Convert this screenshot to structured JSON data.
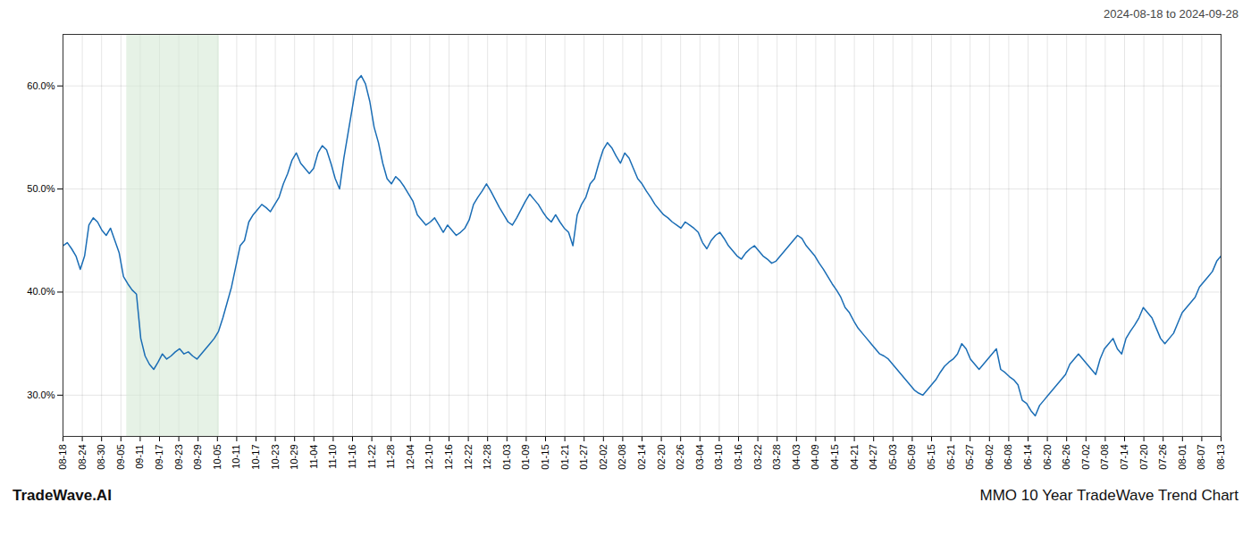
{
  "chart_data": {
    "type": "line",
    "title": "MMO 10 Year TradeWave Trend Chart",
    "subtitle": "2024-08-18 to 2024-09-28",
    "annotations": [
      "TradeWave.AI"
    ],
    "color": "#1a6db5",
    "grid": true,
    "highlight": {
      "range": [
        14.74,
        36.18
      ],
      "color": "#d6ead6"
    },
    "xlim": [
      0,
      268
    ],
    "xticks": [
      {
        "value": 0,
        "label": "08-18"
      },
      {
        "value": 4.466666666666667,
        "label": "08-24"
      },
      {
        "value": 8.933333333333334,
        "label": "08-30"
      },
      {
        "value": 13.4,
        "label": "09-05"
      },
      {
        "value": 17.866666666666667,
        "label": "09-11"
      },
      {
        "value": 22.333333333333332,
        "label": "09-17"
      },
      {
        "value": 26.8,
        "label": "09-23"
      },
      {
        "value": 31.266666666666666,
        "label": "09-29"
      },
      {
        "value": 35.733333333333334,
        "label": "10-05"
      },
      {
        "value": 40.2,
        "label": "10-11"
      },
      {
        "value": 44.666666666666664,
        "label": "10-17"
      },
      {
        "value": 49.13333333333333,
        "label": "10-23"
      },
      {
        "value": 53.6,
        "label": "10-29"
      },
      {
        "value": 58.06666666666667,
        "label": "11-04"
      },
      {
        "value": 62.53333333333333,
        "label": "11-10"
      },
      {
        "value": 67,
        "label": "11-16"
      },
      {
        "value": 71.46666666666667,
        "label": "11-22"
      },
      {
        "value": 75.93333333333334,
        "label": "11-28"
      },
      {
        "value": 80.4,
        "label": "12-04"
      },
      {
        "value": 84.86666666666666,
        "label": "12-10"
      },
      {
        "value": 89.33333333333333,
        "label": "12-16"
      },
      {
        "value": 93.8,
        "label": "12-22"
      },
      {
        "value": 98.26666666666667,
        "label": "12-28"
      },
      {
        "value": 102.73333333333333,
        "label": "01-03"
      },
      {
        "value": 107.2,
        "label": "01-09"
      },
      {
        "value": 111.66666666666667,
        "label": "01-15"
      },
      {
        "value": 116.13333333333334,
        "label": "01-21"
      },
      {
        "value": 120.6,
        "label": "01-27"
      },
      {
        "value": 125.06666666666666,
        "label": "02-02"
      },
      {
        "value": 129.53333333333333,
        "label": "02-08"
      },
      {
        "value": 134,
        "label": "02-14"
      },
      {
        "value": 138.46666666666667,
        "label": "02-20"
      },
      {
        "value": 142.93333333333334,
        "label": "02-26"
      },
      {
        "value": 147.4,
        "label": "03-04"
      },
      {
        "value": 151.86666666666667,
        "label": "03-10"
      },
      {
        "value": 156.33333333333334,
        "label": "03-16"
      },
      {
        "value": 160.8,
        "label": "03-22"
      },
      {
        "value": 165.26666666666668,
        "label": "03-28"
      },
      {
        "value": 169.73333333333332,
        "label": "04-03"
      },
      {
        "value": 174.2,
        "label": "04-09"
      },
      {
        "value": 178.66666666666666,
        "label": "04-15"
      },
      {
        "value": 183.13333333333333,
        "label": "04-21"
      },
      {
        "value": 187.6,
        "label": "04-27"
      },
      {
        "value": 192.06666666666666,
        "label": "05-03"
      },
      {
        "value": 196.53333333333333,
        "label": "05-09"
      },
      {
        "value": 201,
        "label": "05-15"
      },
      {
        "value": 205.46666666666667,
        "label": "05-21"
      },
      {
        "value": 209.93333333333334,
        "label": "05-27"
      },
      {
        "value": 214.4,
        "label": "06-02"
      },
      {
        "value": 218.86666666666667,
        "label": "06-08"
      },
      {
        "value": 223.33333333333334,
        "label": "06-14"
      },
      {
        "value": 227.8,
        "label": "06-20"
      },
      {
        "value": 232.26666666666668,
        "label": "06-26"
      },
      {
        "value": 236.73333333333332,
        "label": "07-02"
      },
      {
        "value": 241.2,
        "label": "07-08"
      },
      {
        "value": 245.66666666666666,
        "label": "07-14"
      },
      {
        "value": 250.13333333333333,
        "label": "07-20"
      },
      {
        "value": 254.6,
        "label": "07-26"
      },
      {
        "value": 259.06666666666666,
        "label": "08-01"
      },
      {
        "value": 263.5333333333333,
        "label": "08-07"
      },
      {
        "value": 268,
        "label": "08-13"
      }
    ],
    "ylim": [
      26,
      65
    ],
    "yticks": [
      {
        "value": 30.0,
        "label": "30.0%"
      },
      {
        "value": 40.0,
        "label": "40.0%"
      },
      {
        "value": 50.0,
        "label": "50.0%"
      },
      {
        "value": 60.0,
        "label": "60.0%"
      }
    ],
    "values": [
      44.5,
      44.8,
      44.2,
      43.5,
      42.2,
      43.5,
      46.5,
      47.2,
      46.8,
      46.0,
      45.5,
      46.2,
      45.0,
      43.8,
      41.5,
      40.8,
      40.2,
      39.8,
      35.5,
      33.8,
      33.0,
      32.5,
      33.2,
      34.0,
      33.5,
      33.8,
      34.2,
      34.5,
      34.0,
      34.2,
      33.8,
      33.5,
      34.0,
      34.5,
      35.0,
      35.5,
      36.2,
      37.5,
      39.0,
      40.5,
      42.5,
      44.5,
      45.0,
      46.8,
      47.5,
      48.0,
      48.5,
      48.2,
      47.8,
      48.5,
      49.2,
      50.5,
      51.5,
      52.8,
      53.5,
      52.5,
      52.0,
      51.5,
      52.0,
      53.5,
      54.2,
      53.8,
      52.5,
      51.0,
      50.0,
      53.0,
      55.5,
      58.0,
      60.5,
      61.0,
      60.2,
      58.5,
      56.0,
      54.5,
      52.5,
      51.0,
      50.5,
      51.2,
      50.8,
      50.2,
      49.5,
      48.8,
      47.5,
      47.0,
      46.5,
      46.8,
      47.2,
      46.5,
      45.8,
      46.5,
      46.0,
      45.5,
      45.8,
      46.2,
      47.0,
      48.5,
      49.2,
      49.8,
      50.5,
      49.8,
      49.0,
      48.2,
      47.5,
      46.8,
      46.5,
      47.2,
      48.0,
      48.8,
      49.5,
      49.0,
      48.5,
      47.8,
      47.2,
      46.8,
      47.5,
      46.8,
      46.2,
      45.8,
      44.5,
      47.5,
      48.5,
      49.2,
      50.5,
      51.0,
      52.5,
      53.8,
      54.5,
      54.0,
      53.2,
      52.5,
      53.5,
      53.0,
      52.0,
      51.0,
      50.5,
      49.8,
      49.2,
      48.5,
      48.0,
      47.5,
      47.2,
      46.8,
      46.5,
      46.2,
      46.8,
      46.5,
      46.2,
      45.8,
      44.8,
      44.2,
      45.0,
      45.5,
      45.8,
      45.2,
      44.5,
      44.0,
      43.5,
      43.2,
      43.8,
      44.2,
      44.5,
      44.0,
      43.5,
      43.2,
      42.8,
      43.0,
      43.5,
      44.0,
      44.5,
      45.0,
      45.5,
      45.2,
      44.5,
      44.0,
      43.5,
      42.8,
      42.2,
      41.5,
      40.8,
      40.2,
      39.5,
      38.5,
      38.0,
      37.2,
      36.5,
      36.0,
      35.5,
      35.0,
      34.5,
      34.0,
      33.8,
      33.5,
      33.0,
      32.5,
      32.0,
      31.5,
      31.0,
      30.5,
      30.2,
      30.0,
      30.5,
      31.0,
      31.5,
      32.2,
      32.8,
      33.2,
      33.5,
      34.0,
      35.0,
      34.5,
      33.5,
      33.0,
      32.5,
      33.0,
      33.5,
      34.0,
      34.5,
      32.5,
      32.2,
      31.8,
      31.5,
      31.0,
      29.5,
      29.2,
      28.5,
      28.0,
      29.0,
      29.5,
      30.0,
      30.5,
      31.0,
      31.5,
      32.0,
      33.0,
      33.5,
      34.0,
      33.5,
      33.0,
      32.5,
      32.0,
      33.5,
      34.5,
      35.0,
      35.5,
      34.5,
      34.0,
      35.5,
      36.2,
      36.8,
      37.5,
      38.5,
      38.0,
      37.5,
      36.5,
      35.5,
      35.0,
      35.5,
      36.0,
      37.0,
      38.0,
      38.5,
      39.0,
      39.5,
      40.5,
      41.0,
      41.5,
      42.0,
      43.0,
      43.5
    ]
  }
}
